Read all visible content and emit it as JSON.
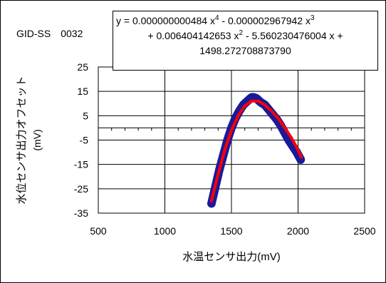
{
  "sample_id": "GID-SS　0032",
  "trendline": {
    "l1a": "y = 0.000000000484 x",
    "e4": "4",
    "l1b": " - 0.000002967942 x",
    "e3": "3",
    "l2a": "+ 0.006404142653 x",
    "e2": "2",
    "l2b": " - 5.560230476004 x +",
    "l3": "1498.272708873790"
  },
  "chart_data": {
    "type": "scatter",
    "title": "",
    "xlabel": "水温センサ出力(mV)",
    "ylabel_line1": "水位センサ出力オフセット",
    "ylabel_line2": "(mV)",
    "xlim": [
      500,
      2500
    ],
    "ylim": [
      -35,
      25
    ],
    "xticks": [
      500,
      1000,
      1500,
      2000,
      2500
    ],
    "yticks": [
      -35,
      -25,
      -15,
      -5,
      5,
      15,
      25
    ],
    "x_axis_crosses_at": 0,
    "grid": true,
    "legend": "none",
    "colors": {
      "points": "#1a1a9a",
      "fit": "#ff0000",
      "grid": "#000000"
    },
    "series": [
      {
        "kind": "points",
        "x": [
          1350,
          1380,
          1410,
          1440,
          1470,
          1500,
          1530,
          1560,
          1590,
          1620,
          1650,
          1670,
          1690,
          1720,
          1750,
          1780,
          1810,
          1840,
          1870,
          1900,
          1930,
          1960,
          1990,
          2020
        ],
        "y": [
          -31,
          -24,
          -17,
          -11,
          -5,
          0,
          4,
          7,
          9.5,
          11,
          12.5,
          12.5,
          12,
          10.5,
          9.5,
          7.5,
          5.5,
          3.5,
          1,
          -2,
          -5,
          -7.5,
          -10,
          -13
        ]
      },
      {
        "kind": "fit",
        "x": [
          1350,
          1400,
          1450,
          1500,
          1550,
          1600,
          1650,
          1700,
          1750,
          1800,
          1850,
          1900,
          1950,
          2000,
          2025
        ],
        "y": [
          -30,
          -19,
          -9,
          -1,
          5,
          9,
          11,
          11,
          9.5,
          7,
          4,
          0,
          -4,
          -9,
          -12
        ]
      }
    ]
  }
}
